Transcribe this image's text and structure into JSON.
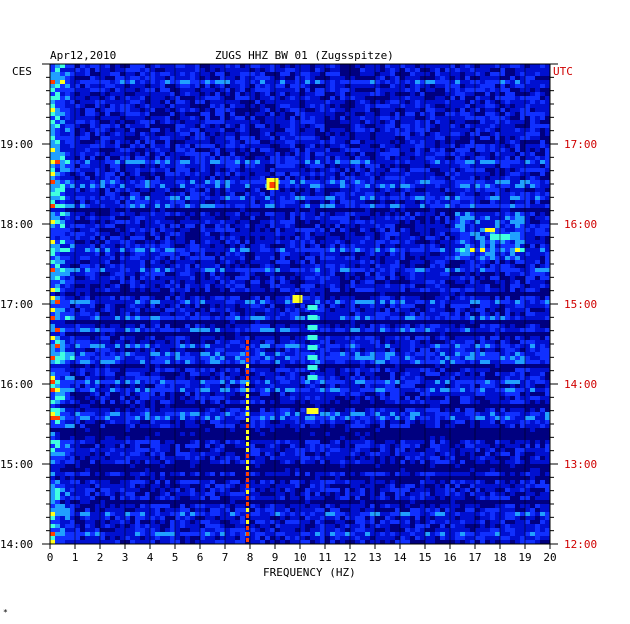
{
  "chart_data": {
    "type": "heatmap",
    "title": "ZUGS HHZ BW 01 (Zugsspitze)",
    "date": "Apr12,2010",
    "xlabel": "FREQUENCY (HZ)",
    "left_axis_label": "CES",
    "right_axis_label": "UTC",
    "xlim": [
      0,
      20
    ],
    "x_ticks": [
      "0",
      "1",
      "2",
      "3",
      "4",
      "5",
      "6",
      "7",
      "8",
      "9",
      "10",
      "11",
      "12",
      "13",
      "14",
      "15",
      "16",
      "17",
      "18",
      "19",
      "20"
    ],
    "left_time_ticks": [
      "19:00",
      "18:00",
      "17:00",
      "16:00",
      "15:00",
      "14:00"
    ],
    "right_time_ticks": [
      "17:00",
      "16:00",
      "15:00",
      "14:00",
      "13:00",
      "12:00"
    ],
    "time_range_ces": [
      "14:00",
      "20:00"
    ],
    "time_range_utc": [
      "12:00",
      "18:00"
    ],
    "colormap": [
      "#000080",
      "#0010d0",
      "#1030ff",
      "#20a0ff",
      "#40ffe0",
      "#ffff20",
      "#ff4000"
    ],
    "gridlines": "vertical at each 1 Hz",
    "features": [
      {
        "freq_hz": 0.5,
        "time_ces": "14:00-20:00",
        "level": "high"
      },
      {
        "freq_hz": 7.9,
        "time_ces": "14:40-16:30",
        "level": "very high"
      },
      {
        "freq_hz": 8.9,
        "time_ces": "18:30",
        "level": "high"
      },
      {
        "freq_hz": 9.8,
        "time_ces": "17:00",
        "level": "high"
      },
      {
        "freq_hz": 10.5,
        "time_ces": "16:00-17:00",
        "level": "high"
      },
      {
        "freq_hz": 18,
        "time_ces": "17:45",
        "level": "medium-high"
      }
    ]
  },
  "footnote": "*"
}
